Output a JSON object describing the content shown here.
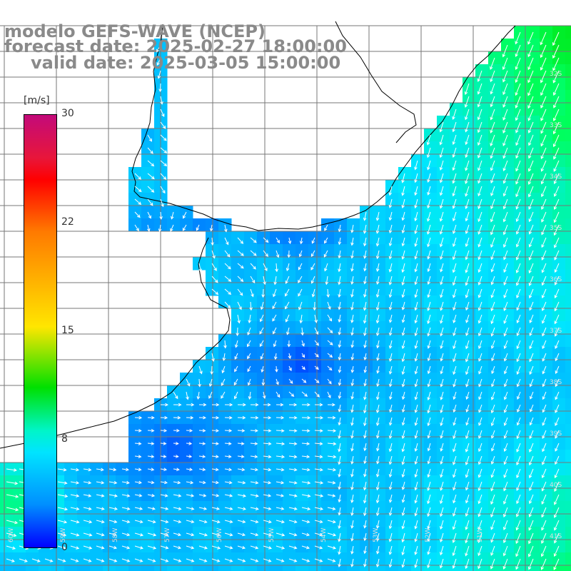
{
  "title": {
    "line1": "modelo GEFS-WAVE (NCEP)",
    "line2": "forecast date: 2025-02-27 18:00:00",
    "line3": "valid date: 2025-03-05 15:00:00"
  },
  "colorbar": {
    "unit": "[m/s]",
    "ticks": [
      "30",
      "22",
      "15",
      "8",
      "0"
    ],
    "tick_values": [
      30,
      22,
      15,
      8,
      0
    ],
    "min": 0,
    "max": 30,
    "colors": {
      "high": "#c30a7a",
      "red": "#ff0000",
      "orange": "#ff7a00",
      "yellow": "#ffe600",
      "green": "#00e000",
      "cyan": "#00e4ff",
      "blue": "#0000ff"
    }
  },
  "map": {
    "lat_labels": [
      "32S",
      "33S",
      "34S",
      "35S",
      "36S",
      "37S",
      "38S",
      "39S",
      "40S",
      "41S"
    ],
    "lon_labels": [
      "60W",
      "59W",
      "58W",
      "57W",
      "56W",
      "55W",
      "54W",
      "53W",
      "52W",
      "51W"
    ],
    "arrow_color": "#ffffff",
    "grid_color": "#777777",
    "coast_color": "#000000"
  }
}
